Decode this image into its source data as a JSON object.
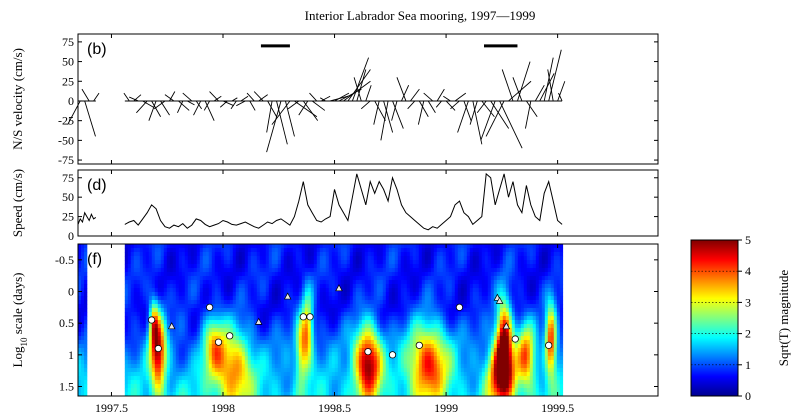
{
  "figure": {
    "title": "Interior Labrador Sea mooring, 1997—1999"
  },
  "chart_data": [
    {
      "type": "line",
      "panel": "(b)",
      "ylabel": "N/S velocity (cm/s)",
      "xlim": [
        1997.35,
        1999.95
      ],
      "ylim": [
        -80,
        85
      ],
      "yticks": [
        -75,
        -50,
        -25,
        0,
        25,
        50,
        75
      ],
      "ytick_labels": [
        "-75",
        "-50",
        "-25",
        "0",
        "25",
        "50",
        "75"
      ],
      "xticks": [
        1997.5,
        1998,
        1998.5,
        1999,
        1999.5
      ],
      "grid": false,
      "representation": "stick plot of velocity vectors",
      "segments": [
        {
          "start": 1997.35,
          "end": 1997.43
        },
        {
          "start": 1997.56,
          "end": 1999.52
        }
      ],
      "bars": [
        [
          1998.17,
          1998.3
        ],
        [
          1999.17,
          1999.32
        ]
      ],
      "bar_level": 70,
      "sticks": [
        {
          "t": 1997.36,
          "u": -14,
          "v": -30
        },
        {
          "t": 1997.38,
          "u": 12,
          "v": -45
        },
        {
          "t": 1997.4,
          "u": -8,
          "v": 15
        },
        {
          "t": 1997.42,
          "u": 6,
          "v": 10
        },
        {
          "t": 1997.58,
          "u": -6,
          "v": 10
        },
        {
          "t": 1997.6,
          "u": 8,
          "v": 8
        },
        {
          "t": 1997.62,
          "u": -10,
          "v": 5
        },
        {
          "t": 1997.64,
          "u": 12,
          "v": -8
        },
        {
          "t": 1997.66,
          "u": -12,
          "v": -15
        },
        {
          "t": 1997.68,
          "u": 10,
          "v": -20
        },
        {
          "t": 1997.7,
          "u": -8,
          "v": -25
        },
        {
          "t": 1997.72,
          "u": 10,
          "v": -18
        },
        {
          "t": 1997.74,
          "u": -12,
          "v": -10
        },
        {
          "t": 1997.76,
          "u": 6,
          "v": 12
        },
        {
          "t": 1997.78,
          "u": -10,
          "v": 8
        },
        {
          "t": 1997.8,
          "u": 12,
          "v": -12
        },
        {
          "t": 1997.82,
          "u": -6,
          "v": -15
        },
        {
          "t": 1997.84,
          "u": 8,
          "v": -5
        },
        {
          "t": 1997.86,
          "u": -10,
          "v": 10
        },
        {
          "t": 1997.88,
          "u": 6,
          "v": -10
        },
        {
          "t": 1997.9,
          "u": -8,
          "v": -18
        },
        {
          "t": 1997.92,
          "u": 10,
          "v": -25
        },
        {
          "t": 1997.94,
          "u": -6,
          "v": -12
        },
        {
          "t": 1997.96,
          "u": 8,
          "v": 6
        },
        {
          "t": 1997.98,
          "u": -10,
          "v": 12
        },
        {
          "t": 1998.0,
          "u": 12,
          "v": -6
        },
        {
          "t": 1998.02,
          "u": -8,
          "v": -8
        },
        {
          "t": 1998.04,
          "u": 6,
          "v": 4
        },
        {
          "t": 1998.06,
          "u": -6,
          "v": -10
        },
        {
          "t": 1998.08,
          "u": 8,
          "v": 6
        },
        {
          "t": 1998.1,
          "u": -10,
          "v": -6
        },
        {
          "t": 1998.12,
          "u": 6,
          "v": -12
        },
        {
          "t": 1998.14,
          "u": -8,
          "v": 10
        },
        {
          "t": 1998.16,
          "u": 10,
          "v": 8
        },
        {
          "t": 1998.18,
          "u": -10,
          "v": 12
        },
        {
          "t": 1998.2,
          "u": 10,
          "v": -20
        },
        {
          "t": 1998.22,
          "u": -6,
          "v": -40
        },
        {
          "t": 1998.24,
          "u": 12,
          "v": -55
        },
        {
          "t": 1998.26,
          "u": -16,
          "v": -65
        },
        {
          "t": 1998.28,
          "u": 10,
          "v": -45
        },
        {
          "t": 1998.3,
          "u": -20,
          "v": -30
        },
        {
          "t": 1998.32,
          "u": 25,
          "v": -20
        },
        {
          "t": 1998.34,
          "u": -12,
          "v": -10
        },
        {
          "t": 1998.36,
          "u": 16,
          "v": -25
        },
        {
          "t": 1998.38,
          "u": -10,
          "v": -18
        },
        {
          "t": 1998.4,
          "u": 14,
          "v": -12
        },
        {
          "t": 1998.42,
          "u": -8,
          "v": 10
        },
        {
          "t": 1998.44,
          "u": 10,
          "v": 6
        },
        {
          "t": 1998.46,
          "u": -6,
          "v": 4
        },
        {
          "t": 1998.48,
          "u": 20,
          "v": 6
        },
        {
          "t": 1998.5,
          "u": 16,
          "v": 10
        },
        {
          "t": 1998.52,
          "u": 25,
          "v": 15
        },
        {
          "t": 1998.54,
          "u": 30,
          "v": 25
        },
        {
          "t": 1998.56,
          "u": 25,
          "v": 40
        },
        {
          "t": 1998.58,
          "u": 18,
          "v": 55
        },
        {
          "t": 1998.6,
          "u": 10,
          "v": 40
        },
        {
          "t": 1998.62,
          "u": -8,
          "v": 30
        },
        {
          "t": 1998.64,
          "u": 6,
          "v": 20
        },
        {
          "t": 1998.66,
          "u": -10,
          "v": -10
        },
        {
          "t": 1998.68,
          "u": 12,
          "v": -25
        },
        {
          "t": 1998.7,
          "u": -6,
          "v": -30
        },
        {
          "t": 1998.72,
          "u": 10,
          "v": -40
        },
        {
          "t": 1998.74,
          "u": -8,
          "v": -50
        },
        {
          "t": 1998.76,
          "u": 12,
          "v": -35
        },
        {
          "t": 1998.78,
          "u": -6,
          "v": -25
        },
        {
          "t": 1998.8,
          "u": 8,
          "v": 20
        },
        {
          "t": 1998.82,
          "u": -10,
          "v": 30
        },
        {
          "t": 1998.84,
          "u": 10,
          "v": 15
        },
        {
          "t": 1998.86,
          "u": -8,
          "v": -10
        },
        {
          "t": 1998.88,
          "u": 10,
          "v": -20
        },
        {
          "t": 1998.9,
          "u": -6,
          "v": -30
        },
        {
          "t": 1998.92,
          "u": 8,
          "v": -15
        },
        {
          "t": 1998.94,
          "u": -10,
          "v": 10
        },
        {
          "t": 1998.96,
          "u": 8,
          "v": 15
        },
        {
          "t": 1998.98,
          "u": -6,
          "v": -8
        },
        {
          "t": 1999.0,
          "u": 10,
          "v": -12
        },
        {
          "t": 1999.02,
          "u": -8,
          "v": 6
        },
        {
          "t": 1999.04,
          "u": 12,
          "v": 10
        },
        {
          "t": 1999.06,
          "u": -10,
          "v": -10
        },
        {
          "t": 1999.08,
          "u": 8,
          "v": -25
        },
        {
          "t": 1999.1,
          "u": -12,
          "v": -40
        },
        {
          "t": 1999.12,
          "u": 10,
          "v": -55
        },
        {
          "t": 1999.14,
          "u": -8,
          "v": -30
        },
        {
          "t": 1999.16,
          "u": 14,
          "v": -20
        },
        {
          "t": 1999.18,
          "u": -10,
          "v": -15
        },
        {
          "t": 1999.2,
          "u": 20,
          "v": -35
        },
        {
          "t": 1999.22,
          "u": -16,
          "v": -50
        },
        {
          "t": 1999.24,
          "u": 25,
          "v": -60
        },
        {
          "t": 1999.26,
          "u": -20,
          "v": -45
        },
        {
          "t": 1999.28,
          "u": 25,
          "v": 25
        },
        {
          "t": 1999.3,
          "u": -12,
          "v": 40
        },
        {
          "t": 1999.32,
          "u": 14,
          "v": 50
        },
        {
          "t": 1999.34,
          "u": -10,
          "v": 30
        },
        {
          "t": 1999.36,
          "u": 12,
          "v": -20
        },
        {
          "t": 1999.38,
          "u": -6,
          "v": -35
        },
        {
          "t": 1999.4,
          "u": 10,
          "v": 20
        },
        {
          "t": 1999.42,
          "u": 16,
          "v": 35
        },
        {
          "t": 1999.44,
          "u": 10,
          "v": 55
        },
        {
          "t": 1999.46,
          "u": 14,
          "v": 65
        },
        {
          "t": 1999.48,
          "u": -6,
          "v": 40
        },
        {
          "t": 1999.5,
          "u": 8,
          "v": 25
        },
        {
          "t": 1999.52,
          "u": -4,
          "v": 10
        }
      ]
    },
    {
      "type": "line",
      "panel": "(d)",
      "ylabel": "Speed (cm/s)",
      "xlim": [
        1997.35,
        1999.95
      ],
      "ylim": [
        0,
        85
      ],
      "yticks": [
        0,
        25,
        50,
        75
      ],
      "ytick_labels": [
        "0",
        "25",
        "50",
        "75"
      ],
      "xticks": [
        1997.5,
        1998,
        1998.5,
        1999,
        1999.5
      ],
      "grid": false,
      "series": [
        {
          "x": [
            1997.35,
            1997.36,
            1997.37,
            1997.38,
            1997.39,
            1997.4,
            1997.41,
            1997.42,
            1997.43
          ],
          "y": [
            15,
            22,
            18,
            30,
            25,
            20,
            28,
            22,
            24
          ]
        },
        {
          "x": [
            1997.56,
            1997.58,
            1997.6,
            1997.62,
            1997.64,
            1997.66,
            1997.68,
            1997.7,
            1997.72,
            1997.74,
            1997.76,
            1997.78,
            1997.8,
            1997.82,
            1997.84,
            1997.86,
            1997.88,
            1997.9,
            1997.92,
            1997.94,
            1997.96,
            1997.98,
            1998.0,
            1998.02,
            1998.04,
            1998.06,
            1998.08,
            1998.1,
            1998.12,
            1998.14,
            1998.16,
            1998.18,
            1998.2,
            1998.22,
            1998.24,
            1998.26,
            1998.28,
            1998.3,
            1998.32,
            1998.34,
            1998.36,
            1998.38,
            1998.4,
            1998.42,
            1998.44,
            1998.46,
            1998.48,
            1998.5,
            1998.52,
            1998.54,
            1998.56,
            1998.58,
            1998.6,
            1998.62,
            1998.64,
            1998.66,
            1998.68,
            1998.7,
            1998.72,
            1998.74,
            1998.76,
            1998.78,
            1998.8,
            1998.82,
            1998.84,
            1998.86,
            1998.88,
            1998.9,
            1998.92,
            1998.94,
            1998.96,
            1998.98,
            1999.0,
            1999.02,
            1999.04,
            1999.06,
            1999.08,
            1999.1,
            1999.12,
            1999.14,
            1999.16,
            1999.18,
            1999.2,
            1999.22,
            1999.24,
            1999.26,
            1999.28,
            1999.3,
            1999.32,
            1999.34,
            1999.36,
            1999.38,
            1999.4,
            1999.42,
            1999.44,
            1999.46,
            1999.48,
            1999.5,
            1999.52
          ],
          "y": [
            15,
            18,
            20,
            14,
            22,
            30,
            40,
            35,
            20,
            12,
            10,
            14,
            12,
            16,
            10,
            14,
            22,
            20,
            15,
            12,
            14,
            16,
            20,
            18,
            15,
            14,
            16,
            18,
            15,
            12,
            10,
            14,
            18,
            16,
            20,
            22,
            18,
            14,
            25,
            45,
            70,
            40,
            30,
            20,
            18,
            22,
            25,
            60,
            40,
            30,
            20,
            50,
            80,
            60,
            40,
            70,
            55,
            70,
            60,
            45,
            75,
            60,
            40,
            30,
            25,
            20,
            15,
            10,
            8,
            12,
            10,
            15,
            20,
            25,
            40,
            45,
            30,
            25,
            15,
            20,
            25,
            80,
            75,
            40,
            60,
            80,
            50,
            70,
            40,
            30,
            65,
            40,
            25,
            20,
            55,
            70,
            45,
            20,
            15
          ]
        }
      ]
    },
    {
      "type": "heatmap",
      "panel": "(f)",
      "ylabel": "Log10 scale (days)",
      "ylabel_parts": {
        "base": "Log",
        "sub": "10",
        "rest": " scale (days)"
      },
      "xlim": [
        1997.35,
        1999.95
      ],
      "ylim": [
        -0.75,
        1.65
      ],
      "y_inverted": true,
      "yticks": [
        -0.5,
        0,
        0.5,
        1,
        1.5
      ],
      "ytick_labels": [
        "-0.5",
        "0",
        "0.5",
        "1",
        "1.5"
      ],
      "xticks": [
        1997.5,
        1998,
        1998.5,
        1999,
        1999.5
      ],
      "xtick_labels": [
        "1997.5",
        "1998",
        "1998.5",
        "1999",
        "1999.5"
      ],
      "data_segments": [
        [
          1997.35,
          1997.38
        ],
        [
          1997.56,
          1999.52
        ]
      ],
      "colorbar": {
        "label": "Sqrt(T) magnitude",
        "min": 0,
        "max": 5,
        "ticks": [
          0,
          1,
          2,
          3,
          4,
          5
        ],
        "tick_labels": [
          "0",
          "1",
          "2",
          "3",
          "4",
          "5"
        ]
      },
      "colormap": [
        "#00008f",
        "#0000ff",
        "#0080ff",
        "#00ffff",
        "#80ff80",
        "#ffff00",
        "#ff8000",
        "#ff0000",
        "#800000"
      ],
      "hotspots": [
        {
          "t": 1997.71,
          "s": 0.95,
          "amp": 3.5,
          "w": 0.035,
          "scale_w": 0.6
        },
        {
          "t": 1997.69,
          "s": 0.5,
          "amp": 2.2,
          "w": 0.02,
          "scale_w": 0.35
        },
        {
          "t": 1997.96,
          "s": 0.85,
          "amp": 2.0,
          "w": 0.05,
          "scale_w": 0.5
        },
        {
          "t": 1998.05,
          "s": 1.2,
          "amp": 2.4,
          "w": 0.08,
          "scale_w": 0.6
        },
        {
          "t": 1998.38,
          "s": 0.6,
          "amp": 2.6,
          "w": 0.025,
          "scale_w": 0.55
        },
        {
          "t": 1998.35,
          "s": 0.9,
          "amp": 2.0,
          "w": 0.025,
          "scale_w": 0.5
        },
        {
          "t": 1998.65,
          "s": 1.1,
          "amp": 3.8,
          "w": 0.06,
          "scale_w": 0.55
        },
        {
          "t": 1998.92,
          "s": 1.1,
          "amp": 3.0,
          "w": 0.09,
          "scale_w": 0.6
        },
        {
          "t": 1999.26,
          "s": 0.7,
          "amp": 3.7,
          "w": 0.035,
          "scale_w": 0.6
        },
        {
          "t": 1999.25,
          "s": 1.3,
          "amp": 3.5,
          "w": 0.06,
          "scale_w": 0.5
        },
        {
          "t": 1999.36,
          "s": 1.0,
          "amp": 2.6,
          "w": 0.04,
          "scale_w": 0.5
        },
        {
          "t": 1999.47,
          "s": 0.75,
          "amp": 3.3,
          "w": 0.025,
          "scale_w": 0.55
        }
      ],
      "markers": [
        {
          "t": 1997.68,
          "s": 0.45,
          "shape": "circle"
        },
        {
          "t": 1997.71,
          "s": 0.9,
          "shape": "circle"
        },
        {
          "t": 1997.77,
          "s": 0.55,
          "shape": "triangle"
        },
        {
          "t": 1997.94,
          "s": 0.25,
          "shape": "circle"
        },
        {
          "t": 1997.98,
          "s": 0.8,
          "shape": "circle"
        },
        {
          "t": 1998.03,
          "s": 0.7,
          "shape": "circle"
        },
        {
          "t": 1998.16,
          "s": 0.48,
          "shape": "triangle"
        },
        {
          "t": 1998.29,
          "s": 0.08,
          "shape": "triangle"
        },
        {
          "t": 1998.36,
          "s": 0.4,
          "shape": "circle"
        },
        {
          "t": 1998.39,
          "s": 0.4,
          "shape": "circle"
        },
        {
          "t": 1998.52,
          "s": -0.05,
          "shape": "triangle"
        },
        {
          "t": 1998.65,
          "s": 0.95,
          "shape": "circle"
        },
        {
          "t": 1998.76,
          "s": 1.0,
          "shape": "circle"
        },
        {
          "t": 1998.88,
          "s": 0.85,
          "shape": "circle"
        },
        {
          "t": 1999.06,
          "s": 0.25,
          "shape": "circle"
        },
        {
          "t": 1999.23,
          "s": 0.1,
          "shape": "triangle"
        },
        {
          "t": 1999.24,
          "s": 0.15,
          "shape": "triangle"
        },
        {
          "t": 1999.27,
          "s": 0.55,
          "shape": "triangle"
        },
        {
          "t": 1999.31,
          "s": 0.75,
          "shape": "circle"
        },
        {
          "t": 1999.46,
          "s": 0.85,
          "shape": "circle"
        }
      ]
    }
  ]
}
